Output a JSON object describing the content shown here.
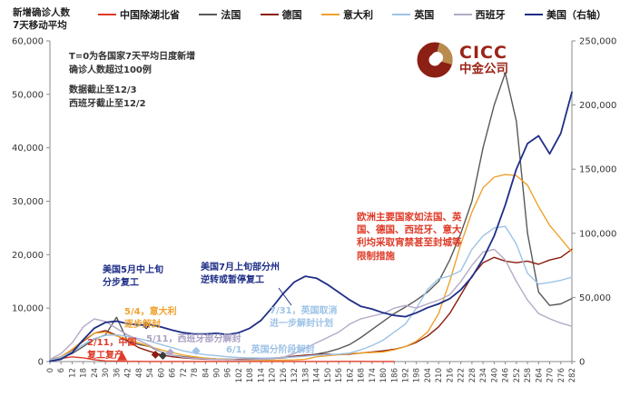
{
  "header": {
    "axis_title_line1": "新增确诊人数",
    "axis_title_line2": "7天移动平均",
    "logo": {
      "text_en": "CICC",
      "text_cn": "中金公司"
    }
  },
  "notes": {
    "line1": "T=0为各国家7天平均日度新增",
    "line2": "确诊人数超过100例",
    "line3": "数据截止至12/3",
    "line4": "西班牙截止至12/2"
  },
  "annotations": {
    "us_may": {
      "text": "美国5月中上旬\n分步复工",
      "color": "#1f2e87"
    },
    "us_jul": {
      "text": "美国7月上旬部分州\n逆转或暂停复工",
      "color": "#1f2e87"
    },
    "italy": {
      "text": "5/4，意大利\n逐步解封",
      "color": "#efa22d"
    },
    "china": {
      "text": "2/11，中国\n复工复产",
      "color": "#df3a27"
    },
    "spain": {
      "text": "5/11，西班牙部分解封",
      "color": "#aaa0c2"
    },
    "uk_jun": {
      "text": "6/1，英国分阶段解封",
      "color": "#9dc3e6"
    },
    "uk_jul": {
      "text": "7/31，英国取消\n进一步解封计划",
      "color": "#9dc3e6"
    },
    "europe": {
      "text": "欧洲主要国家如法国、英国、德国、西班牙、意大利均采取宵禁甚至封城等限制措施",
      "color": "#df3a27"
    }
  },
  "chart_data": {
    "type": "line",
    "title": "新增确诊人数7天移动平均",
    "xlabel": "T（天），T=0为各国家7天平均日度新增确诊人数超过100例",
    "ylabel_left": "新增确诊人数（7天移动平均）",
    "ylabel_right": "美国（右轴）",
    "xlim": [
      0,
      282
    ],
    "ylim_left": [
      0,
      60000
    ],
    "ylim_right": [
      0,
      250000
    ],
    "yticks_left": [
      0,
      10000,
      20000,
      30000,
      40000,
      50000,
      60000
    ],
    "yticks_right": [
      0,
      50000,
      100000,
      150000,
      200000,
      250000
    ],
    "grid": false,
    "legend_position": "top",
    "x_ticks": [
      0,
      6,
      12,
      18,
      24,
      30,
      36,
      42,
      48,
      54,
      60,
      66,
      72,
      78,
      84,
      90,
      96,
      102,
      108,
      114,
      120,
      126,
      132,
      138,
      144,
      150,
      156,
      162,
      168,
      174,
      180,
      186,
      192,
      198,
      204,
      210,
      216,
      222,
      228,
      234,
      240,
      246,
      252,
      258,
      264,
      270,
      276,
      282
    ],
    "series": [
      {
        "name": "中国除湖北省",
        "color": "#df3a27",
        "axis": "left",
        "values": [
          150,
          600,
          880,
          700,
          350,
          120,
          60,
          40,
          30,
          25,
          20,
          20,
          15,
          15,
          10,
          10,
          10,
          15,
          20,
          25,
          20,
          15,
          10,
          10,
          15,
          20,
          30,
          40,
          30,
          20,
          15,
          10,
          null,
          null,
          null,
          null,
          null,
          null,
          null,
          null,
          null,
          null,
          null,
          null,
          null,
          null,
          null,
          null
        ]
      },
      {
        "name": "法国",
        "color": "#595959",
        "axis": "left",
        "values": [
          300,
          700,
          1500,
          2800,
          4200,
          5000,
          8300,
          3800,
          3200,
          2800,
          1800,
          1200,
          900,
          700,
          600,
          500,
          450,
          400,
          400,
          500,
          600,
          700,
          900,
          1100,
          1400,
          1800,
          2400,
          3200,
          4500,
          6000,
          7500,
          9000,
          10200,
          11500,
          13000,
          15000,
          19000,
          24000,
          30000,
          40000,
          48000,
          54000,
          45000,
          24000,
          13000,
          10500,
          10800,
          11800
        ]
      },
      {
        "name": "德国",
        "color": "#8b1c0e",
        "axis": "left",
        "values": [
          300,
          900,
          2200,
          3800,
          5300,
          5800,
          4900,
          3800,
          2600,
          1900,
          1300,
          900,
          700,
          550,
          450,
          400,
          350,
          400,
          450,
          500,
          600,
          800,
          1000,
          1200,
          1300,
          1400,
          1300,
          1400,
          1600,
          1800,
          2000,
          2300,
          2800,
          3600,
          4800,
          6500,
          9000,
          12500,
          16000,
          18500,
          19500,
          18800,
          18500,
          18800,
          18200,
          19000,
          19500,
          21000
        ]
      },
      {
        "name": "意大利",
        "color": "#efa22d",
        "axis": "left",
        "values": [
          250,
          900,
          2300,
          4000,
          5300,
          5500,
          4800,
          4200,
          3500,
          2800,
          2200,
          1700,
          1200,
          900,
          650,
          500,
          400,
          300,
          250,
          230,
          250,
          280,
          300,
          400,
          900,
          1100,
          1300,
          1500,
          1600,
          1700,
          1800,
          2200,
          2800,
          3800,
          5500,
          9000,
          15000,
          22000,
          28000,
          32500,
          34500,
          35000,
          34800,
          33000,
          29000,
          25500,
          23000,
          20500
        ]
      },
      {
        "name": "英国",
        "color": "#9dc3e6",
        "axis": "left",
        "values": [
          250,
          800,
          1800,
          3200,
          4300,
          4900,
          5000,
          4700,
          4300,
          3800,
          3200,
          2600,
          2000,
          1600,
          1300,
          1100,
          900,
          750,
          700,
          650,
          680,
          750,
          850,
          1000,
          1200,
          1300,
          1400,
          1600,
          2200,
          3000,
          4000,
          5500,
          7000,
          10000,
          13500,
          15500,
          16000,
          17000,
          21000,
          23500,
          25000,
          25300,
          22000,
          16500,
          14500,
          14800,
          15200,
          15800
        ]
      },
      {
        "name": "西班牙",
        "color": "#b3aac6",
        "axis": "left",
        "values": [
          400,
          1500,
          3500,
          6500,
          8000,
          7500,
          6200,
          5000,
          4000,
          3000,
          1800,
          1200,
          800,
          600,
          500,
          400,
          350,
          300,
          350,
          400,
          500,
          800,
          1500,
          2500,
          3500,
          4500,
          5500,
          7000,
          8000,
          8500,
          9000,
          10000,
          10500,
          10000,
          10800,
          11500,
          12500,
          15000,
          18000,
          20500,
          21000,
          19000,
          15000,
          11500,
          9000,
          8000,
          7200,
          6600
        ]
      },
      {
        "name": "美国（右轴）",
        "color": "#1f2e87",
        "axis": "right",
        "values": [
          300,
          1800,
          7000,
          17000,
          26000,
          30500,
          31500,
          29500,
          28500,
          29000,
          27000,
          24500,
          22500,
          21500,
          21500,
          22000,
          21000,
          22500,
          26000,
          32000,
          42000,
          53000,
          62000,
          66500,
          65000,
          60000,
          54000,
          48000,
          43000,
          41000,
          38000,
          36000,
          35000,
          38000,
          42000,
          45000,
          49000,
          56000,
          66000,
          80000,
          98000,
          122000,
          150000,
          170000,
          176000,
          162000,
          178000,
          210000
        ]
      }
    ],
    "event_markers": [
      {
        "shape": "triangle",
        "color": "#df3a27",
        "day": 39,
        "value": 900,
        "axis": "left",
        "label": "2/11 中国复工复产"
      },
      {
        "shape": "diamond",
        "color": "#1f2e87",
        "day": 52,
        "value": 6800,
        "axis": "left",
        "label": "5/4 意大利逐步解封"
      },
      {
        "shape": "diamond",
        "color": "#8b1c0e",
        "day": 57,
        "value": 1300,
        "axis": "left",
        "label": ""
      },
      {
        "shape": "diamond",
        "color": "#3a3a3a",
        "day": 61,
        "value": 1100,
        "axis": "left",
        "label": ""
      },
      {
        "shape": "diamond",
        "color": "#b3aac6",
        "day": 65,
        "value": 1700,
        "axis": "left",
        "label": "5/11 西班牙部分解封"
      },
      {
        "shape": "diamond",
        "color": "#9dc3e6",
        "day": 79,
        "value": 2000,
        "axis": "left",
        "label": "6/1 英国分阶段解封"
      }
    ]
  }
}
